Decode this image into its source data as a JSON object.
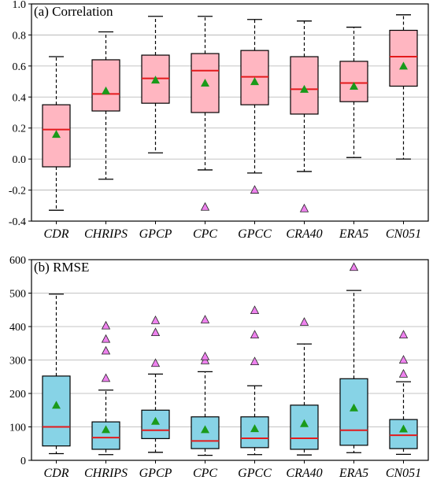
{
  "chart_data": [
    {
      "type": "box",
      "title": "(a) Correlation",
      "categories": [
        "CDR",
        "CHRIPS",
        "GPCP",
        "CPC",
        "GPCC",
        "CRA40",
        "ERA5",
        "CN051"
      ],
      "ylim": [
        -0.4,
        1.0
      ],
      "yticks": [
        "-0.4",
        "-0.2",
        "0.0",
        "0.2",
        "0.4",
        "0.6",
        "0.8",
        "1.0"
      ],
      "ytick_values": [
        -0.4,
        -0.2,
        0.0,
        0.2,
        0.4,
        0.6,
        0.8,
        1.0
      ],
      "grid": true,
      "box_color": "#ffb6c1",
      "median_color": "#e31a1c",
      "mean_color": "#1a9a1a",
      "outlier_color": "#ee82ee",
      "boxes": [
        {
          "whisker_low": -0.33,
          "q1": -0.05,
          "median": 0.19,
          "q3": 0.35,
          "whisker_high": 0.66,
          "mean": 0.16,
          "outliers": []
        },
        {
          "whisker_low": -0.13,
          "q1": 0.31,
          "median": 0.42,
          "q3": 0.64,
          "whisker_high": 0.82,
          "mean": 0.44,
          "outliers": []
        },
        {
          "whisker_low": 0.04,
          "q1": 0.36,
          "median": 0.52,
          "q3": 0.67,
          "whisker_high": 0.92,
          "mean": 0.51,
          "outliers": []
        },
        {
          "whisker_low": -0.07,
          "q1": 0.3,
          "median": 0.57,
          "q3": 0.68,
          "whisker_high": 0.92,
          "mean": 0.49,
          "outliers": [
            -0.31
          ]
        },
        {
          "whisker_low": -0.09,
          "q1": 0.35,
          "median": 0.53,
          "q3": 0.7,
          "whisker_high": 0.9,
          "mean": 0.5,
          "outliers": [
            -0.2
          ]
        },
        {
          "whisker_low": -0.08,
          "q1": 0.29,
          "median": 0.45,
          "q3": 0.66,
          "whisker_high": 0.89,
          "mean": 0.45,
          "outliers": [
            -0.32
          ]
        },
        {
          "whisker_low": 0.01,
          "q1": 0.37,
          "median": 0.49,
          "q3": 0.63,
          "whisker_high": 0.85,
          "mean": 0.47,
          "outliers": []
        },
        {
          "whisker_low": 0.0,
          "q1": 0.47,
          "median": 0.66,
          "q3": 0.83,
          "whisker_high": 0.93,
          "mean": 0.6,
          "outliers": []
        }
      ]
    },
    {
      "type": "box",
      "title": "(b) RMSE",
      "categories": [
        "CDR",
        "CHRIPS",
        "GPCP",
        "CPC",
        "GPCC",
        "CRA40",
        "ERA5",
        "CN051"
      ],
      "ylim": [
        0,
        600
      ],
      "yticks": [
        "0",
        "100",
        "200",
        "300",
        "400",
        "500",
        "600"
      ],
      "ytick_values": [
        0,
        100,
        200,
        300,
        400,
        500,
        600
      ],
      "grid": true,
      "box_color": "#87d3e6",
      "median_color": "#e31a1c",
      "mean_color": "#1a9a1a",
      "outlier_color": "#ee82ee",
      "boxes": [
        {
          "whisker_low": 20,
          "q1": 43,
          "median": 100,
          "q3": 252,
          "whisker_high": 497,
          "mean": 165,
          "outliers": []
        },
        {
          "whisker_low": 17,
          "q1": 33,
          "median": 68,
          "q3": 115,
          "whisker_high": 210,
          "mean": 92,
          "outliers": [
            245,
            327,
            362,
            402
          ]
        },
        {
          "whisker_low": 24,
          "q1": 65,
          "median": 90,
          "q3": 150,
          "whisker_high": 258,
          "mean": 117,
          "outliers": [
            290,
            382,
            418
          ]
        },
        {
          "whisker_low": 15,
          "q1": 35,
          "median": 58,
          "q3": 130,
          "whisker_high": 265,
          "mean": 92,
          "outliers": [
            298,
            310,
            420
          ]
        },
        {
          "whisker_low": 17,
          "q1": 38,
          "median": 66,
          "q3": 130,
          "whisker_high": 223,
          "mean": 95,
          "outliers": [
            295,
            375,
            448
          ]
        },
        {
          "whisker_low": 16,
          "q1": 33,
          "median": 66,
          "q3": 165,
          "whisker_high": 348,
          "mean": 110,
          "outliers": [
            413
          ]
        },
        {
          "whisker_low": 23,
          "q1": 45,
          "median": 90,
          "q3": 244,
          "whisker_high": 508,
          "mean": 157,
          "outliers": [
            577
          ]
        },
        {
          "whisker_low": 18,
          "q1": 35,
          "median": 75,
          "q3": 122,
          "whisker_high": 235,
          "mean": 94,
          "outliers": [
            258,
            300,
            375
          ]
        }
      ]
    }
  ]
}
